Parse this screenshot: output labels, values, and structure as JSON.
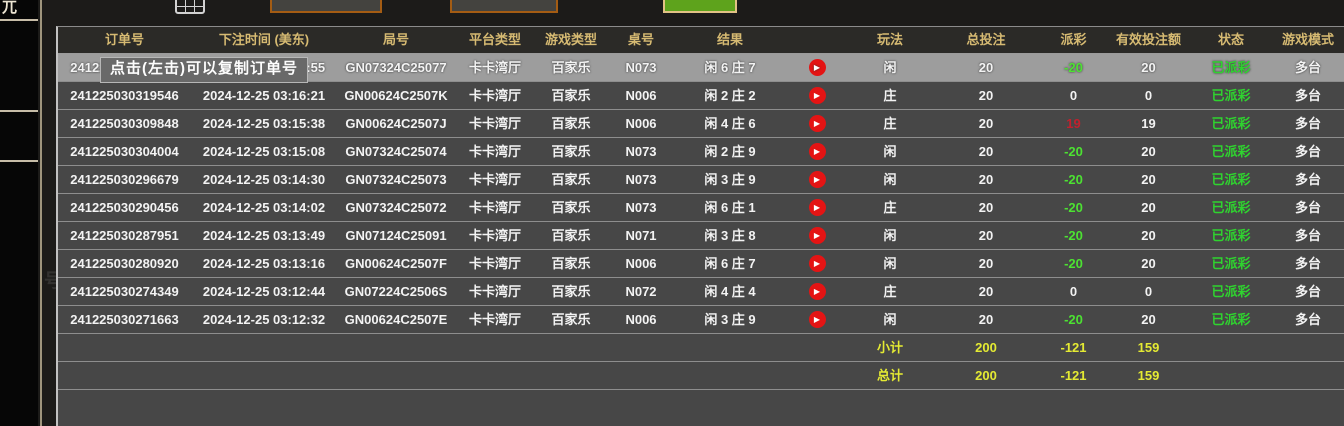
{
  "sidebar": {
    "partial_text": "兀"
  },
  "background_bleed_text": "号:百家",
  "toolbar": {
    "date_start_label": "",
    "date_end_label": "",
    "query_label": ""
  },
  "tooltip": {
    "text": "点击(左击)可以复制订单号"
  },
  "table": {
    "columns": [
      {
        "key": "order",
        "label": "订单号"
      },
      {
        "key": "time",
        "label": "下注时间 (美东)"
      },
      {
        "key": "round",
        "label": "局号"
      },
      {
        "key": "platform",
        "label": "平台类型"
      },
      {
        "key": "game",
        "label": "游戏类型"
      },
      {
        "key": "table",
        "label": "桌号"
      },
      {
        "key": "result",
        "label": "结果"
      },
      {
        "key": "replay",
        "label": ""
      },
      {
        "key": "play",
        "label": "玩法"
      },
      {
        "key": "total",
        "label": "总投注"
      },
      {
        "key": "payout",
        "label": "派彩"
      },
      {
        "key": "valid",
        "label": "有效投注额"
      },
      {
        "key": "status",
        "label": "状态"
      },
      {
        "key": "mode",
        "label": "游戏模式"
      }
    ],
    "rows": [
      {
        "order": "241225030320563",
        "time": "2024-12-25 03:16:55",
        "round": "GN07324C25077",
        "platform": "卡卡湾厅",
        "game": "百家乐",
        "table": "N073",
        "result": "闲 6 庄 7",
        "play": "闲",
        "total": "20",
        "payout": "-20",
        "valid": "20",
        "status": "已派彩",
        "mode": "多台",
        "hovered": true
      },
      {
        "order": "241225030319546",
        "time": "2024-12-25 03:16:21",
        "round": "GN00624C2507K",
        "platform": "卡卡湾厅",
        "game": "百家乐",
        "table": "N006",
        "result": "闲 2 庄 2",
        "play": "庄",
        "total": "20",
        "payout": "0",
        "valid": "0",
        "status": "已派彩",
        "mode": "多台",
        "hovered": false
      },
      {
        "order": "241225030309848",
        "time": "2024-12-25 03:15:38",
        "round": "GN00624C2507J",
        "platform": "卡卡湾厅",
        "game": "百家乐",
        "table": "N006",
        "result": "闲 4 庄 6",
        "play": "庄",
        "total": "20",
        "payout": "19",
        "valid": "19",
        "status": "已派彩",
        "mode": "多台",
        "hovered": false
      },
      {
        "order": "241225030304004",
        "time": "2024-12-25 03:15:08",
        "round": "GN07324C25074",
        "platform": "卡卡湾厅",
        "game": "百家乐",
        "table": "N073",
        "result": "闲 2 庄 9",
        "play": "闲",
        "total": "20",
        "payout": "-20",
        "valid": "20",
        "status": "已派彩",
        "mode": "多台",
        "hovered": false
      },
      {
        "order": "241225030296679",
        "time": "2024-12-25 03:14:30",
        "round": "GN07324C25073",
        "platform": "卡卡湾厅",
        "game": "百家乐",
        "table": "N073",
        "result": "闲 3 庄 9",
        "play": "闲",
        "total": "20",
        "payout": "-20",
        "valid": "20",
        "status": "已派彩",
        "mode": "多台",
        "hovered": false
      },
      {
        "order": "241225030290456",
        "time": "2024-12-25 03:14:02",
        "round": "GN07324C25072",
        "platform": "卡卡湾厅",
        "game": "百家乐",
        "table": "N073",
        "result": "闲 6 庄 1",
        "play": "庄",
        "total": "20",
        "payout": "-20",
        "valid": "20",
        "status": "已派彩",
        "mode": "多台",
        "hovered": false
      },
      {
        "order": "241225030287951",
        "time": "2024-12-25 03:13:49",
        "round": "GN07124C25091",
        "platform": "卡卡湾厅",
        "game": "百家乐",
        "table": "N071",
        "result": "闲 3 庄 8",
        "play": "闲",
        "total": "20",
        "payout": "-20",
        "valid": "20",
        "status": "已派彩",
        "mode": "多台",
        "hovered": false
      },
      {
        "order": "241225030280920",
        "time": "2024-12-25 03:13:16",
        "round": "GN00624C2507F",
        "platform": "卡卡湾厅",
        "game": "百家乐",
        "table": "N006",
        "result": "闲 6 庄 7",
        "play": "闲",
        "total": "20",
        "payout": "-20",
        "valid": "20",
        "status": "已派彩",
        "mode": "多台",
        "hovered": false
      },
      {
        "order": "241225030274349",
        "time": "2024-12-25 03:12:44",
        "round": "GN07224C2506S",
        "platform": "卡卡湾厅",
        "game": "百家乐",
        "table": "N072",
        "result": "闲 4 庄 4",
        "play": "庄",
        "total": "20",
        "payout": "0",
        "valid": "0",
        "status": "已派彩",
        "mode": "多台",
        "hovered": false
      },
      {
        "order": "241225030271663",
        "time": "2024-12-25 03:12:32",
        "round": "GN00624C2507E",
        "platform": "卡卡湾厅",
        "game": "百家乐",
        "table": "N006",
        "result": "闲 3 庄 9",
        "play": "闲",
        "total": "20",
        "payout": "-20",
        "valid": "20",
        "status": "已派彩",
        "mode": "多台",
        "hovered": false
      }
    ],
    "summary_rows": [
      {
        "label": "小计",
        "total": "200",
        "payout": "-121",
        "valid": "159"
      },
      {
        "label": "总计",
        "total": "200",
        "payout": "-121",
        "valid": "159"
      }
    ]
  },
  "colors": {
    "header_text": "#d6ba72",
    "row_background": "#474747",
    "hover_row_background": "#9d9d9d",
    "payout_negative_green": "#4ce232",
    "payout_positive_red": "#c2202e",
    "status_green": "#2fd32f",
    "summary_yellow": "#e4ea33",
    "play_icon_red": "#e41414",
    "date_button_border_orange": "#a45c13",
    "query_button_green": "#5ea31c"
  }
}
